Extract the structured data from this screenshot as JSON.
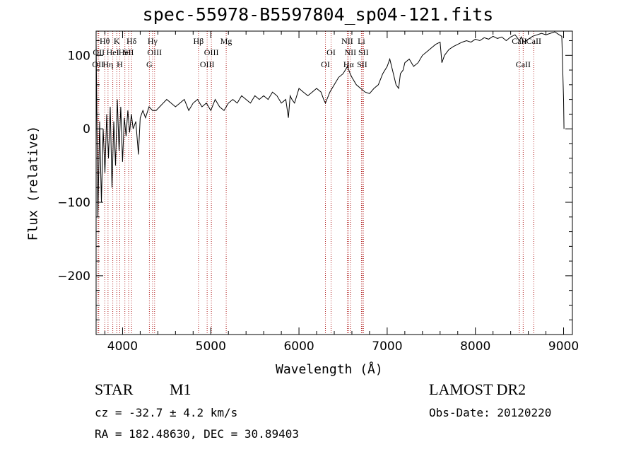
{
  "header": {
    "title": "spec-55978-B5597804_sp04-121.fits"
  },
  "info": {
    "object_type": "STAR",
    "object_class": "M1",
    "survey": "LAMOST DR2",
    "cz": "cz = -32.7 ± 4.2 km/s",
    "obs_date": "Obs-Date: 20120220",
    "radec": "RA = 182.48630, DEC =  30.89403"
  },
  "colors": {
    "spectrum": "#000000",
    "lines": "#b22222"
  },
  "chart_data": {
    "type": "line",
    "xlabel": "Wavelength (Å)",
    "ylabel": "Flux (relative)",
    "xlim": [
      3700,
      9100
    ],
    "ylim": [
      -280,
      133
    ],
    "xticks": [
      4000,
      5000,
      6000,
      7000,
      8000,
      9000
    ],
    "yticks": [
      -200,
      -100,
      0,
      100
    ],
    "grid": false,
    "series": [
      {
        "values_x": [
          3700,
          3720,
          3740,
          3760,
          3780,
          3800,
          3820,
          3840,
          3860,
          3880,
          3900,
          3920,
          3940,
          3960,
          3980,
          4000,
          4020,
          4040,
          4060,
          4080,
          4100,
          4120,
          4150,
          4180,
          4200,
          4230,
          4260,
          4300,
          4340,
          4380,
          4420,
          4460,
          4500,
          4550,
          4600,
          4650,
          4700,
          4750,
          4800,
          4850,
          4900,
          4950,
          5000,
          5050,
          5100,
          5150,
          5200,
          5250,
          5300,
          5350,
          5400,
          5450,
          5500,
          5550,
          5600,
          5650,
          5700,
          5750,
          5800,
          5850,
          5880,
          5900,
          5920,
          5950,
          6000,
          6050,
          6100,
          6150,
          6200,
          6250,
          6280,
          6300,
          6350,
          6400,
          6450,
          6500,
          6550,
          6580,
          6600,
          6650,
          6700,
          6750,
          6800,
          6850,
          6900,
          6950,
          7000,
          7030,
          7060,
          7080,
          7100,
          7130,
          7150,
          7180,
          7200,
          7250,
          7300,
          7350,
          7400,
          7450,
          7500,
          7550,
          7600,
          7620,
          7650,
          7700,
          7750,
          7800,
          7850,
          7900,
          7950,
          8000,
          8050,
          8100,
          8150,
          8200,
          8250,
          8300,
          8350,
          8400,
          8450,
          8500,
          8520,
          8550,
          8600,
          8650,
          8700,
          8750,
          8800,
          8850,
          8900,
          8950,
          8980,
          9000,
          9005
        ],
        "values_y": [
          120,
          -120,
          10,
          -100,
          0,
          -60,
          20,
          -40,
          30,
          -80,
          10,
          -50,
          40,
          -30,
          30,
          -45,
          15,
          -10,
          25,
          -5,
          20,
          0,
          10,
          -35,
          15,
          25,
          15,
          30,
          25,
          25,
          30,
          35,
          40,
          35,
          30,
          35,
          40,
          25,
          35,
          40,
          30,
          35,
          25,
          40,
          30,
          25,
          35,
          40,
          35,
          45,
          40,
          35,
          45,
          40,
          45,
          40,
          50,
          45,
          35,
          40,
          15,
          45,
          40,
          35,
          55,
          50,
          45,
          50,
          55,
          50,
          40,
          35,
          50,
          60,
          70,
          75,
          85,
          75,
          70,
          60,
          55,
          50,
          48,
          55,
          60,
          75,
          85,
          95,
          80,
          70,
          60,
          55,
          75,
          80,
          90,
          95,
          85,
          90,
          100,
          105,
          110,
          115,
          118,
          90,
          100,
          108,
          112,
          115,
          118,
          120,
          118,
          122,
          120,
          124,
          122,
          126,
          123,
          125,
          120,
          125,
          128,
          120,
          125,
          118,
          122,
          126,
          128,
          130,
          128,
          130,
          132,
          128,
          126,
          40,
          0
        ]
      }
    ],
    "lines": [
      {
        "wave": 3722,
        "label": "OII",
        "row": 3
      },
      {
        "wave": 3730,
        "label": "OII",
        "row": 2
      },
      {
        "wave": 3798,
        "label": "Hθ",
        "row": 1
      },
      {
        "wave": 3835,
        "label": "Hη",
        "row": 3
      },
      {
        "wave": 3889,
        "label": "HeI",
        "row": 2
      },
      {
        "wave": 3934,
        "label": "K",
        "row": 1
      },
      {
        "wave": 3968,
        "label": "H",
        "row": 3
      },
      {
        "wave": 4026,
        "label": "HeI",
        "row": 2
      },
      {
        "wave": 4069,
        "label": "SII",
        "row": 2
      },
      {
        "wave": 4102,
        "label": "Hδ",
        "row": 1
      },
      {
        "wave": 4304,
        "label": "G",
        "row": 3
      },
      {
        "wave": 4340,
        "label": "Hγ",
        "row": 1
      },
      {
        "wave": 4363,
        "label": "OIII",
        "row": 2
      },
      {
        "wave": 4861,
        "label": "Hβ",
        "row": 1
      },
      {
        "wave": 4959,
        "label": "OIII",
        "row": 3
      },
      {
        "wave": 5007,
        "label": "OIII",
        "row": 2
      },
      {
        "wave": 5175,
        "label": "Mg",
        "row": 1
      },
      {
        "wave": 6300,
        "label": "OI",
        "row": 3
      },
      {
        "wave": 6364,
        "label": "OI",
        "row": 2
      },
      {
        "wave": 6548,
        "label": "NII",
        "row": 1
      },
      {
        "wave": 6563,
        "label": "Hα",
        "row": 3
      },
      {
        "wave": 6583,
        "label": "NII",
        "row": 2
      },
      {
        "wave": 6708,
        "label": "Li",
        "row": 1
      },
      {
        "wave": 6716,
        "label": "SII",
        "row": 3
      },
      {
        "wave": 6731,
        "label": "SII",
        "row": 2
      },
      {
        "wave": 8498,
        "label": "CaII",
        "row": 1
      },
      {
        "wave": 8542,
        "label": "CaII",
        "row": 3
      },
      {
        "wave": 8662,
        "label": "CaII",
        "row": 1
      }
    ]
  }
}
